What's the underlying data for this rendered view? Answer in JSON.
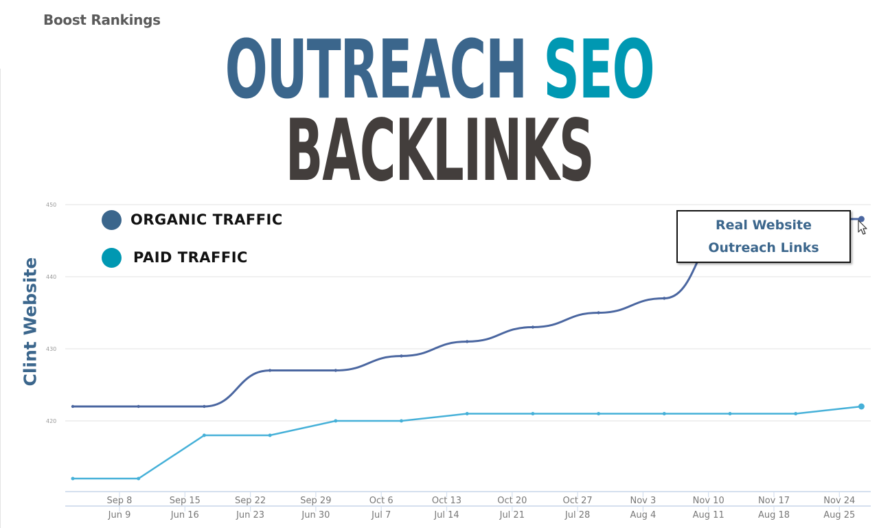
{
  "brand": "Boost Rankings",
  "headline": {
    "line1_part1": "OUTREACH",
    "line1_part2": "SEO",
    "line2": "BACKLINKS"
  },
  "y_axis_title": "Clint Website",
  "legend": [
    {
      "label": "ORGANIC TRAFFIC",
      "color": "#3b668c"
    },
    {
      "label": "PAID TRAFFIC",
      "color": "#0098b2"
    }
  ],
  "callout": {
    "line1": "Real Website",
    "line2": "Outreach Links"
  },
  "colors": {
    "organic_line": "#4a66a0",
    "paid_line": "#45b0d8",
    "grid": "#ececec",
    "axis": "#d4dfee",
    "tick_text": "#777777"
  },
  "chart_data": {
    "type": "line",
    "title": "OUTREACH SEO BACKLINKS",
    "xlabel": "",
    "ylabel": "Clint Website",
    "ylim": [
      410,
      450
    ],
    "yticks": [
      450,
      440,
      430,
      420
    ],
    "grid": true,
    "legend_position": "top-left",
    "x_tick_labels_primary": [
      "Sep 8",
      "Sep 15",
      "Sep 22",
      "Sep 29",
      "Oct 6",
      "Oct 13",
      "Oct 20",
      "Oct 27",
      "Nov 3",
      "Nov 10",
      "Nov 17",
      "Nov 24"
    ],
    "x_tick_labels_secondary": [
      "Jun 9",
      "Jun 16",
      "Jun 23",
      "Jun 30",
      "Jul 7",
      "Jul 14",
      "Jul 21",
      "Jul 28",
      "Aug 4",
      "Aug 11",
      "Aug 18",
      "Aug 25"
    ],
    "series": [
      {
        "name": "ORGANIC TRAFFIC",
        "values": [
          422,
          422,
          422,
          427,
          427,
          429,
          431,
          433,
          435,
          437,
          447,
          448,
          448
        ]
      },
      {
        "name": "PAID TRAFFIC",
        "values": [
          412,
          412,
          418,
          418,
          420,
          420,
          421,
          421,
          421,
          421,
          421,
          421,
          422
        ]
      }
    ],
    "annotations": [
      "Real Website Outreach Links"
    ]
  }
}
